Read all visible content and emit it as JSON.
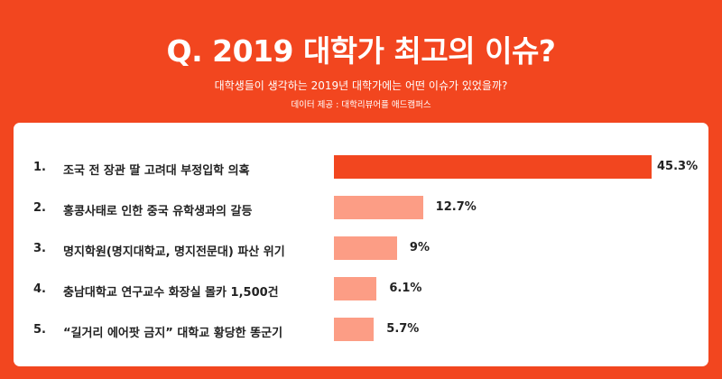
{
  "header": {
    "title": "Q. 2019 대학가 최고의 이슈?",
    "subtitle": "대학생들이 생각하는 2019년 대학가에는 어떤 이슈가 있었을까?",
    "source": "데이터 제공 : 대학리뷰어플 애드캠퍼스"
  },
  "chart_data": {
    "type": "bar",
    "title": "Q. 2019 대학가 최고의 이슈?",
    "categories": [
      "조국 전 장관 딸 고려대 부정입학 의혹",
      "홍콩사태로 인한 중국 유학생과의 갈등",
      "명지학원(명지대학교, 명지전문대) 파산 위기",
      "충남대학교 연구교수 화장실 몰카 1,500건",
      "“길거리 에어팟 금지” 대학교 황당한 똥군기"
    ],
    "ranks": [
      "1.",
      "2.",
      "3.",
      "4.",
      "5."
    ],
    "values": [
      45.3,
      12.7,
      9,
      6.1,
      5.7
    ],
    "value_labels": [
      "45.3%",
      "12.7%",
      "9%",
      "6.1%",
      "5.7%"
    ],
    "colors": {
      "top": "#f2461f",
      "rest": "#fc9d85"
    }
  }
}
